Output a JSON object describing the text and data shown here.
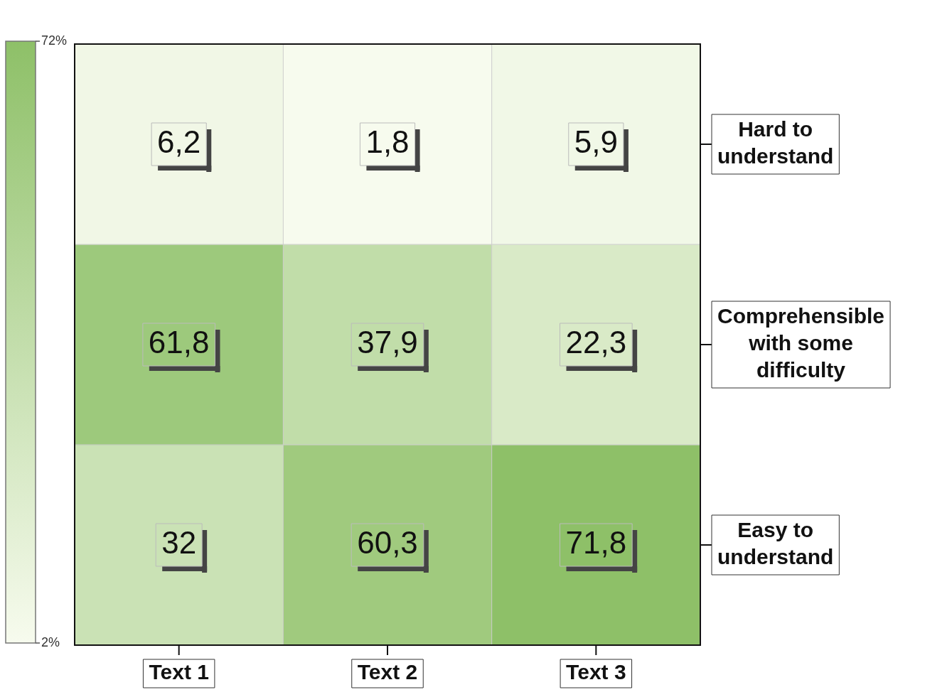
{
  "chart_data": {
    "type": "heatmap",
    "categories": [
      "Text 1",
      "Text 2",
      "Text 3"
    ],
    "y_categories": [
      "Hard to understand",
      "Comprehensible with some difficulty",
      "Easy to understand"
    ],
    "cells": [
      [
        6.2,
        1.8,
        5.9
      ],
      [
        61.8,
        37.9,
        22.3
      ],
      [
        32,
        60.3,
        71.8
      ]
    ],
    "cell_labels": [
      [
        "6,2",
        "1,8",
        "5,9"
      ],
      [
        "61,8",
        "37,9",
        "22,3"
      ],
      [
        "32",
        "60,3",
        "71,8"
      ]
    ],
    "clim": [
      2,
      72
    ],
    "cticks": [
      {
        "value": 2,
        "label": "2%"
      },
      {
        "value": 72,
        "label": "72%"
      }
    ]
  }
}
